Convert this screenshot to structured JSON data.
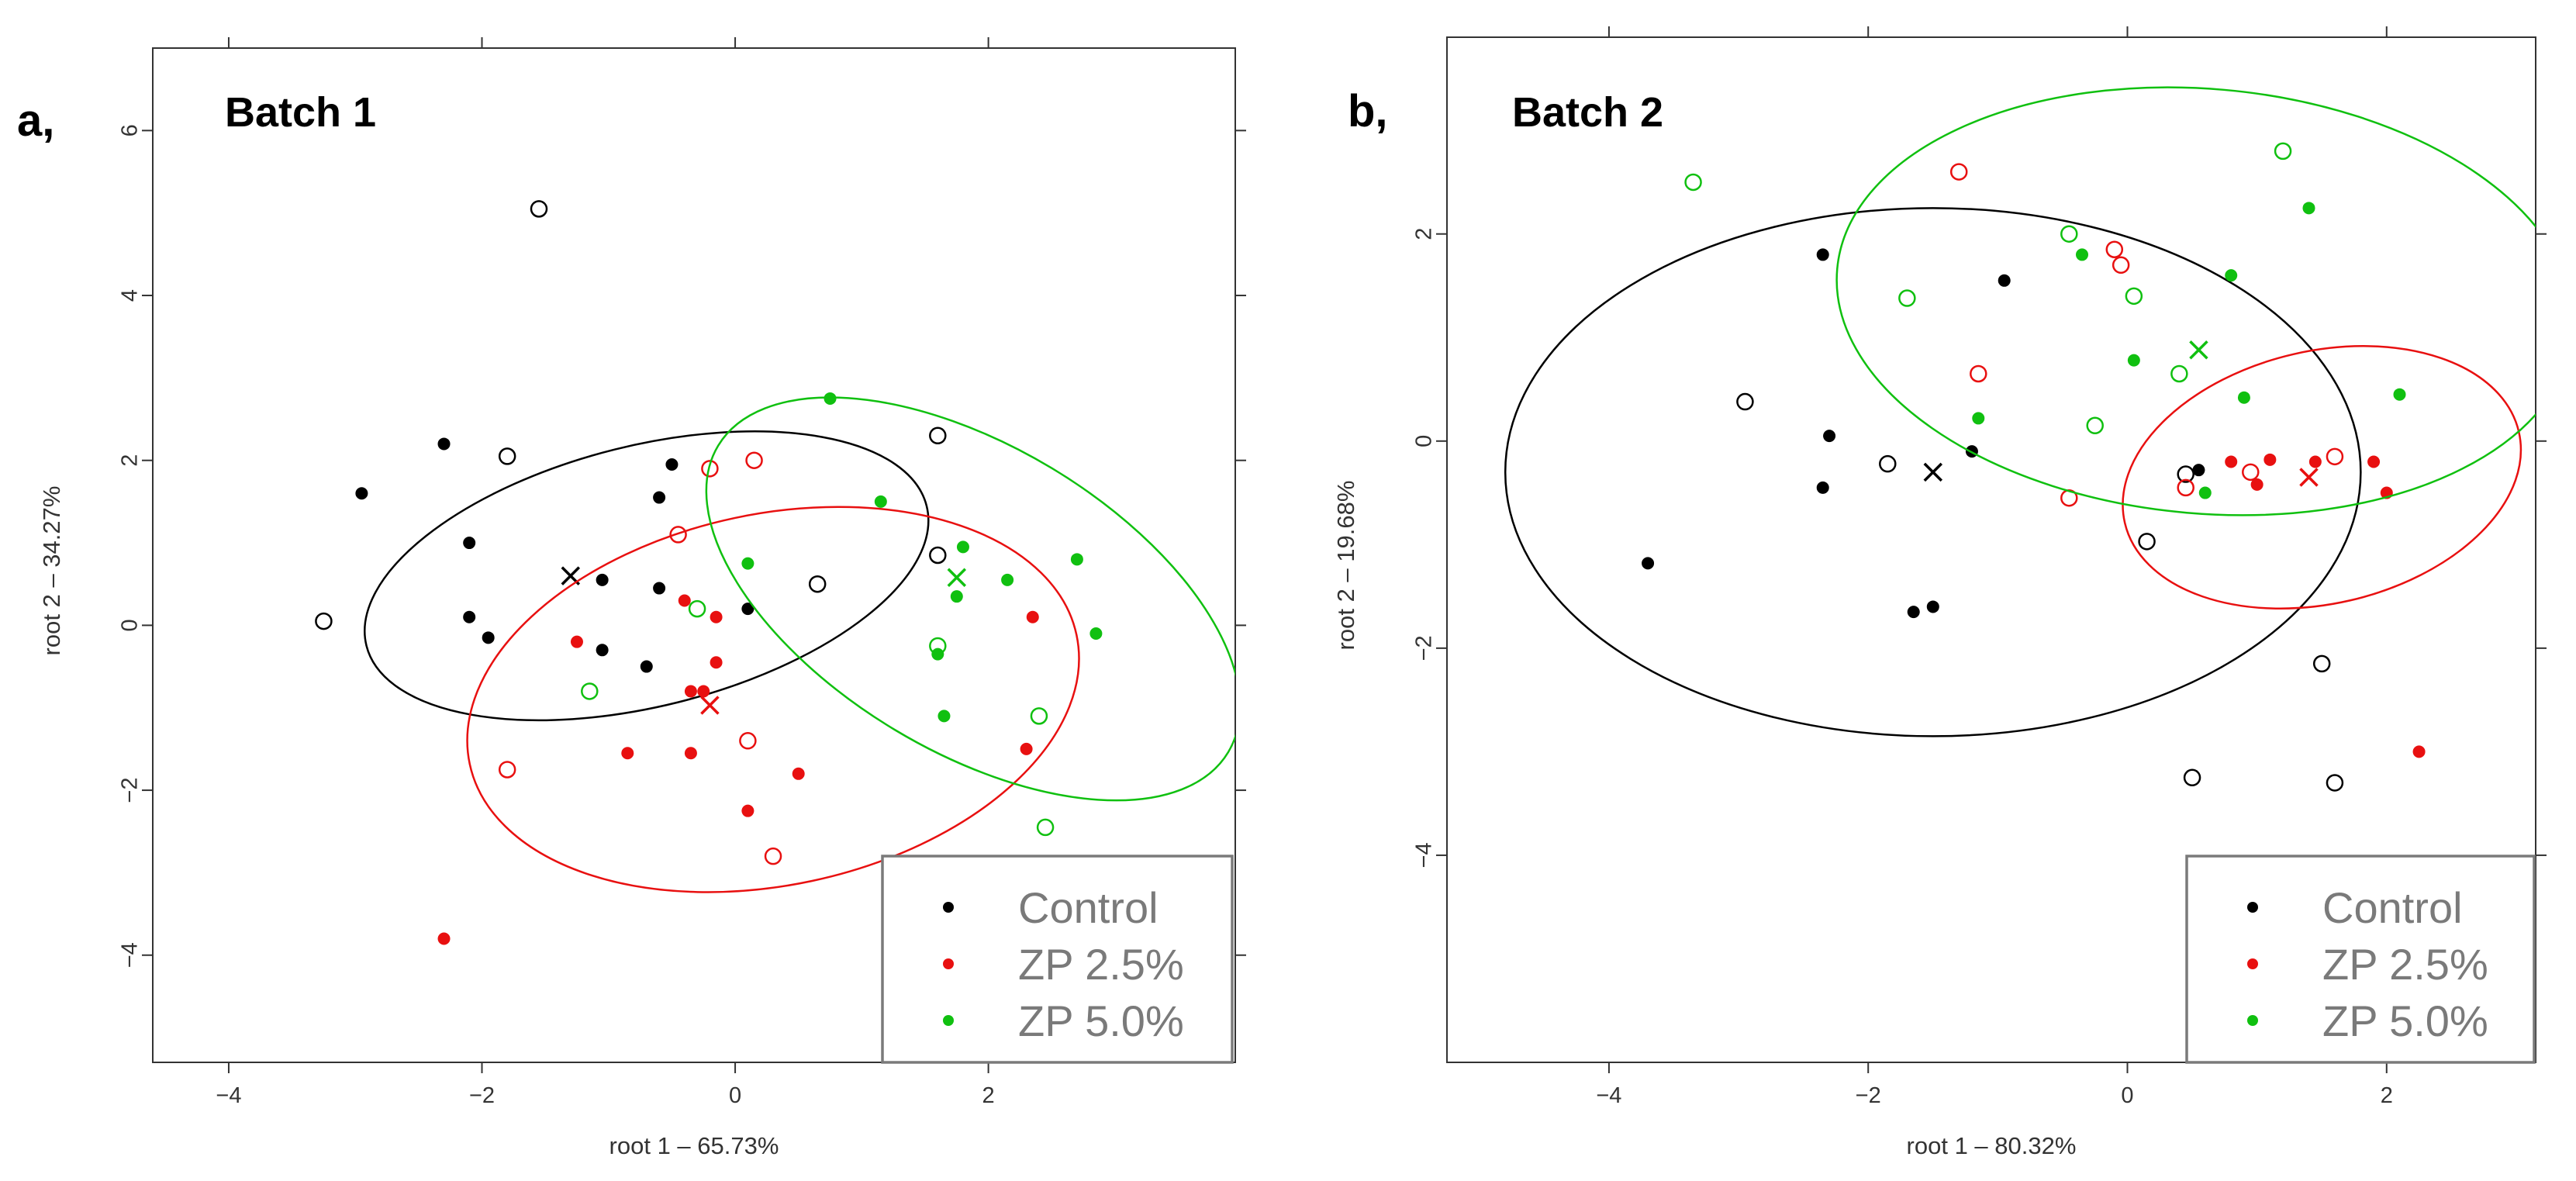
{
  "colors": {
    "Control": "#000000",
    "ZP 2.5%": "#e81010",
    "ZP 5.0%": "#10c010"
  },
  "chart_data": [
    {
      "type": "scatter",
      "panel_tag": "a,",
      "title": "Batch 1",
      "xlabel": "root 1 – 65.73%",
      "ylabel": "root 2 – 34.27%",
      "xlim": [
        -4.6,
        3.95
      ],
      "ylim": [
        -5.3,
        7.0
      ],
      "xticks": [
        {
          "v": -4,
          "label": "−4"
        },
        {
          "v": -2,
          "label": "−2"
        },
        {
          "v": 0,
          "label": "0"
        },
        {
          "v": 2,
          "label": "2"
        }
      ],
      "yticks": [
        {
          "v": -4,
          "label": "−4"
        },
        {
          "v": -2,
          "label": "−2"
        },
        {
          "v": 0,
          "label": "0"
        },
        {
          "v": 2,
          "label": "2"
        },
        {
          "v": 4,
          "label": "4"
        },
        {
          "v": 6,
          "label": "6"
        }
      ],
      "legend": {
        "position": "bottom-right",
        "entries": [
          "Control",
          "ZP 2.5%",
          "ZP 5.0%"
        ]
      },
      "series": [
        {
          "name": "Control",
          "filled": [
            [
              -2.95,
              1.6
            ],
            [
              -2.3,
              2.2
            ],
            [
              -2.1,
              1.0
            ],
            [
              -2.1,
              0.1
            ],
            [
              -1.95,
              -0.15
            ],
            [
              -1.05,
              0.55
            ],
            [
              -1.05,
              -0.3
            ],
            [
              -0.6,
              1.55
            ],
            [
              -0.5,
              1.95
            ],
            [
              -0.6,
              0.45
            ],
            [
              -0.7,
              -0.5
            ],
            [
              0.1,
              0.2
            ]
          ],
          "open": [
            [
              -1.55,
              5.05
            ],
            [
              -1.8,
              2.05
            ],
            [
              -3.25,
              0.05
            ],
            [
              1.6,
              2.3
            ],
            [
              1.6,
              0.85
            ],
            [
              0.65,
              0.5
            ]
          ],
          "centroid": [
            -1.3,
            0.6
          ],
          "ellipse": {
            "cx": -0.7,
            "cy": 0.6,
            "rx": 2.28,
            "ry": 1.58,
            "angle_deg": 14
          }
        },
        {
          "name": "ZP 2.5%",
          "filled": [
            [
              -1.25,
              -0.2
            ],
            [
              -0.4,
              0.3
            ],
            [
              -0.15,
              0.1
            ],
            [
              -0.35,
              -0.8
            ],
            [
              -0.25,
              -0.8
            ],
            [
              -0.15,
              -0.45
            ],
            [
              -0.85,
              -1.55
            ],
            [
              -0.35,
              -1.55
            ],
            [
              0.1,
              -2.25
            ],
            [
              0.5,
              -1.8
            ],
            [
              2.35,
              0.1
            ],
            [
              2.3,
              -1.5
            ],
            [
              -2.3,
              -3.8
            ]
          ],
          "open": [
            [
              -0.2,
              1.9
            ],
            [
              0.15,
              2.0
            ],
            [
              -0.45,
              1.1
            ],
            [
              0.1,
              -1.4
            ],
            [
              -1.8,
              -1.75
            ],
            [
              0.3,
              -2.8
            ]
          ],
          "centroid": [
            -0.2,
            -0.97
          ],
          "ellipse": {
            "cx": 0.3,
            "cy": -0.9,
            "rx": 2.45,
            "ry": 2.25,
            "angle_deg": 12
          }
        },
        {
          "name": "ZP 5.0%",
          "filled": [
            [
              0.75,
              2.75
            ],
            [
              1.15,
              1.5
            ],
            [
              1.8,
              0.95
            ],
            [
              1.75,
              0.35
            ],
            [
              2.15,
              0.55
            ],
            [
              2.7,
              0.8
            ],
            [
              2.85,
              -0.1
            ],
            [
              1.6,
              -0.35
            ],
            [
              1.65,
              -1.1
            ],
            [
              0.1,
              0.75
            ]
          ],
          "open": [
            [
              1.6,
              -0.25
            ],
            [
              -0.3,
              0.2
            ],
            [
              -1.15,
              -0.8
            ],
            [
              2.4,
              -1.1
            ],
            [
              2.45,
              -2.45
            ]
          ],
          "centroid": [
            1.75,
            0.58
          ],
          "ellipse": {
            "cx": 1.88,
            "cy": 0.32,
            "rx": 2.35,
            "ry": 1.85,
            "angle_deg": -31
          }
        }
      ]
    },
    {
      "type": "scatter",
      "panel_tag": "b,",
      "title": "Batch 2",
      "xlabel": "root 1 – 80.32%",
      "ylabel": "root 2 – 19.68%",
      "xlim": [
        -5.25,
        3.15
      ],
      "ylim": [
        -6.0,
        3.9
      ],
      "xticks": [
        {
          "v": -4,
          "label": "−4"
        },
        {
          "v": -2,
          "label": "−2"
        },
        {
          "v": 0,
          "label": "0"
        },
        {
          "v": 2,
          "label": "2"
        }
      ],
      "yticks": [
        {
          "v": -4,
          "label": "−4"
        },
        {
          "v": -2,
          "label": "−2"
        },
        {
          "v": 0,
          "label": "0"
        },
        {
          "v": 2,
          "label": "2"
        }
      ],
      "legend": {
        "position": "bottom-right",
        "entries": [
          "Control",
          "ZP 2.5%",
          "ZP 5.0%"
        ]
      },
      "series": [
        {
          "name": "Control",
          "filled": [
            [
              -2.35,
              1.8
            ],
            [
              -0.95,
              1.55
            ],
            [
              -2.3,
              0.05
            ],
            [
              -2.35,
              -0.45
            ],
            [
              -1.2,
              -0.1
            ],
            [
              -3.7,
              -1.18
            ],
            [
              -1.65,
              -1.65
            ],
            [
              -1.5,
              -1.6
            ],
            [
              0.55,
              -0.28
            ]
          ],
          "open": [
            [
              -2.95,
              0.38
            ],
            [
              -1.85,
              -0.22
            ],
            [
              0.45,
              -0.32
            ],
            [
              0.15,
              -0.97
            ],
            [
              1.5,
              -2.15
            ],
            [
              0.5,
              -3.25
            ],
            [
              1.6,
              -3.3
            ]
          ],
          "centroid": [
            -1.5,
            -0.3
          ],
          "ellipse": {
            "cx": -1.5,
            "cy": -0.3,
            "rx": 3.3,
            "ry": 2.55,
            "angle_deg": 0
          }
        },
        {
          "name": "ZP 2.5%",
          "filled": [
            [
              0.8,
              -0.2
            ],
            [
              1.0,
              -0.42
            ],
            [
              1.1,
              -0.18
            ],
            [
              1.45,
              -0.2
            ],
            [
              1.9,
              -0.2
            ],
            [
              2.0,
              -0.5
            ],
            [
              2.25,
              -3.0
            ]
          ],
          "open": [
            [
              -1.3,
              2.6
            ],
            [
              -0.1,
              1.85
            ],
            [
              -0.05,
              1.7
            ],
            [
              -1.15,
              0.65
            ],
            [
              -0.45,
              -0.55
            ],
            [
              0.45,
              -0.45
            ],
            [
              0.95,
              -0.3
            ],
            [
              1.6,
              -0.15
            ]
          ],
          "centroid": [
            1.4,
            -0.35
          ],
          "ellipse": {
            "cx": 1.5,
            "cy": -0.35,
            "rx": 1.56,
            "ry": 1.22,
            "angle_deg": 13
          }
        },
        {
          "name": "ZP 5.0%",
          "filled": [
            [
              -0.35,
              1.8
            ],
            [
              1.4,
              2.25
            ],
            [
              0.8,
              1.6
            ],
            [
              0.05,
              0.78
            ],
            [
              -1.15,
              0.22
            ],
            [
              0.9,
              0.42
            ],
            [
              2.1,
              0.45
            ],
            [
              0.6,
              -0.5
            ]
          ],
          "open": [
            [
              -3.35,
              2.5
            ],
            [
              -0.45,
              2.0
            ],
            [
              -1.7,
              1.38
            ],
            [
              0.05,
              1.4
            ],
            [
              1.2,
              2.8
            ],
            [
              -0.25,
              0.15
            ],
            [
              0.4,
              0.65
            ]
          ],
          "centroid": [
            0.55,
            0.88
          ],
          "ellipse": {
            "cx": 0.6,
            "cy": 1.35,
            "rx": 2.85,
            "ry": 2.05,
            "angle_deg": -5
          }
        }
      ]
    }
  ]
}
